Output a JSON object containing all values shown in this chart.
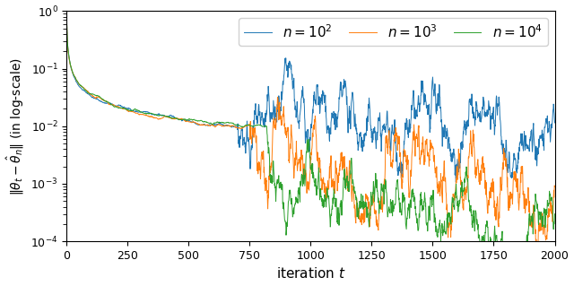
{
  "title": "",
  "xlabel": "iteration $t$",
  "ylabel": "$\\|\\theta_t - \\hat{\\theta}_n\\|$ (in log-scale)",
  "xlim": [
    0,
    2000
  ],
  "ylim_log": [
    0.0001,
    1.0
  ],
  "n_iterations": 2001,
  "series": [
    {
      "label": "$n = 10^2$",
      "color": "#1f77b4"
    },
    {
      "label": "$n = 10^3$",
      "color": "#ff7f0e"
    },
    {
      "label": "$n = 10^4$",
      "color": "#2ca02c"
    }
  ],
  "legend_loc": "upper right",
  "figsize": [
    6.4,
    3.19
  ],
  "dpi": 100
}
